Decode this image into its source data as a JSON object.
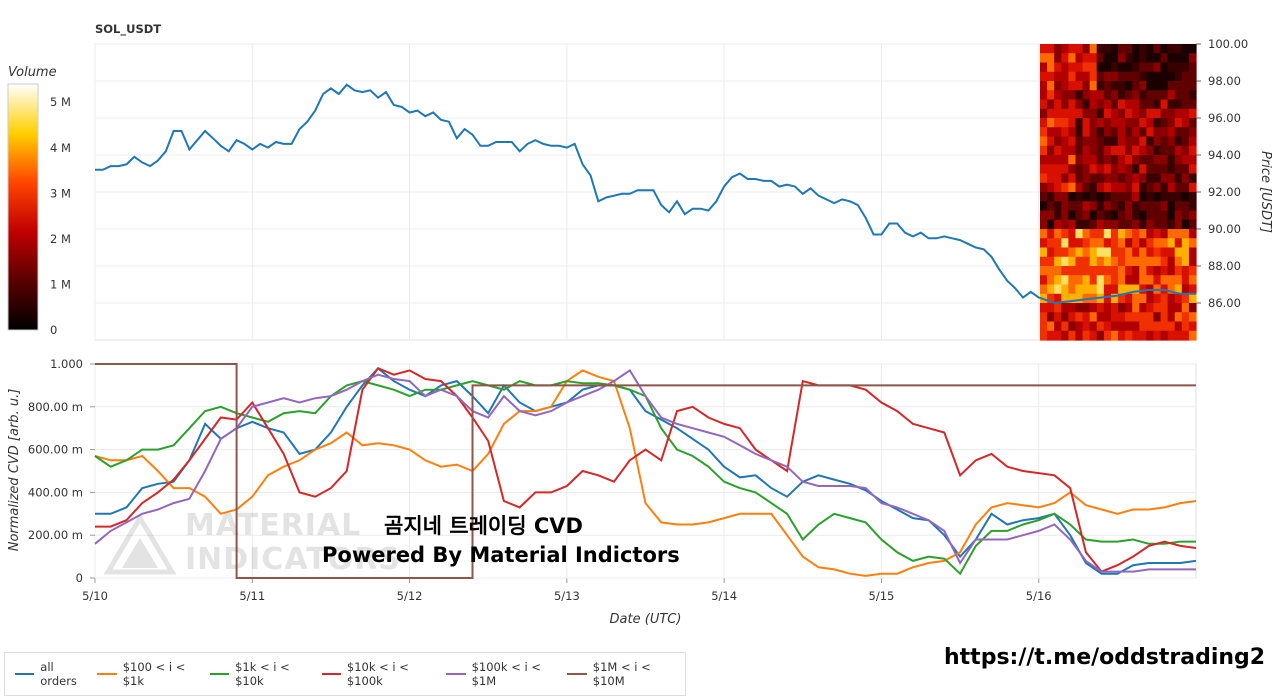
{
  "chart_data": [
    {
      "type": "line",
      "title": "SOL_USDT",
      "xlabel": "",
      "ylabel": "Price [USDT]",
      "ylim": [
        84,
        100
      ],
      "y_ticks": [
        "100.00",
        "98.00",
        "96.00",
        "94.00",
        "92.00",
        "90.00",
        "88.00",
        "86.00"
      ],
      "x_ticks": [
        "5/10",
        "5/11",
        "5/12",
        "5/13",
        "5/14",
        "5/15",
        "5/16"
      ],
      "grid": true,
      "series": [
        {
          "color": "#1f77b4",
          "x": [
            0,
            0.05,
            0.1,
            0.15,
            0.2,
            0.25,
            0.3,
            0.35,
            0.4,
            0.45,
            0.5,
            0.55,
            0.6,
            0.65,
            0.7,
            0.75,
            0.8,
            0.85,
            0.9,
            0.95,
            1.0,
            1.05,
            1.1,
            1.15,
            1.2,
            1.25,
            1.3,
            1.35,
            1.4,
            1.45,
            1.5,
            1.55,
            1.6,
            1.65,
            1.7,
            1.75,
            1.8,
            1.85,
            1.9,
            1.95,
            2.0,
            2.05,
            2.1,
            2.15,
            2.2,
            2.25,
            2.3,
            2.35,
            2.4,
            2.45,
            2.5,
            2.55,
            2.6,
            2.65,
            2.7,
            2.75,
            2.8,
            2.85,
            2.9,
            2.95,
            3.0,
            3.05,
            3.1,
            3.15,
            3.2,
            3.25,
            3.3,
            3.35,
            3.4,
            3.45,
            3.5,
            3.55,
            3.6,
            3.65,
            3.7,
            3.75,
            3.8,
            3.85,
            3.9,
            3.95,
            4.0,
            4.05,
            4.1,
            4.15,
            4.2,
            4.25,
            4.3,
            4.35,
            4.4,
            4.45,
            4.5,
            4.55,
            4.6,
            4.65,
            4.7,
            4.75,
            4.8,
            4.85,
            4.9,
            4.95,
            5.0,
            5.05,
            5.1,
            5.15,
            5.2,
            5.25,
            5.3,
            5.35,
            5.4,
            5.45,
            5.5,
            5.55,
            5.6,
            5.65,
            5.7,
            5.75,
            5.8,
            5.85,
            5.9,
            5.95,
            6.0,
            6.1,
            6.2,
            6.3,
            6.4,
            6.5,
            6.6,
            6.7,
            6.8,
            6.9,
            7.0
          ],
          "y": [
            93.2,
            93.2,
            93.4,
            93.4,
            93.5,
            93.9,
            93.6,
            93.4,
            93.7,
            94.2,
            95.3,
            95.3,
            94.3,
            94.8,
            95.3,
            94.9,
            94.5,
            94.2,
            94.8,
            94.6,
            94.3,
            94.6,
            94.4,
            94.7,
            94.6,
            94.6,
            95.4,
            95.8,
            96.4,
            97.3,
            97.6,
            97.3,
            97.8,
            97.5,
            97.4,
            97.5,
            97.1,
            97.4,
            96.7,
            96.6,
            96.3,
            96.4,
            96.1,
            96.3,
            95.9,
            95.8,
            94.9,
            95.4,
            95.1,
            94.5,
            94.5,
            94.7,
            94.7,
            94.7,
            94.2,
            94.6,
            94.8,
            94.6,
            94.5,
            94.5,
            94.4,
            94.6,
            93.5,
            92.9,
            91.5,
            91.7,
            91.8,
            91.9,
            91.9,
            92.1,
            92.1,
            92.1,
            91.3,
            90.9,
            91.5,
            90.8,
            91.1,
            91.1,
            91.0,
            91.5,
            92.3,
            92.8,
            93.0,
            92.7,
            92.7,
            92.6,
            92.6,
            92.3,
            92.4,
            92.3,
            91.9,
            92.2,
            91.8,
            91.6,
            91.4,
            91.6,
            91.5,
            91.3,
            90.6,
            89.7,
            89.7,
            90.3,
            90.3,
            89.8,
            89.6,
            89.8,
            89.5,
            89.5,
            89.6,
            89.5,
            89.4,
            89.2,
            89.0,
            88.9,
            88.5,
            87.8,
            87.2,
            86.8,
            86.3,
            86.6,
            86.3,
            86.0,
            86.1,
            86.2,
            86.3,
            86.4,
            86.6,
            86.7,
            86.7,
            86.5,
            86.5
          ]
        }
      ],
      "heatmap_colorbar": {
        "title": "Volume",
        "ticks": [
          "5 M",
          "4 M",
          "3 M",
          "2 M",
          "1 M",
          "0"
        ],
        "range": [
          0,
          5.4
        ]
      }
    },
    {
      "type": "line",
      "xlabel": "Date (UTC)",
      "ylabel": "Normalized CVD [arb. u.]",
      "ylim": [
        0,
        1
      ],
      "y_ticks": [
        "1.000",
        "800.00 m",
        "600.00 m",
        "400.00 m",
        "200.00 m",
        "0"
      ],
      "x_ticks": [
        "5/10",
        "5/11",
        "5/12",
        "5/13",
        "5/14",
        "5/15",
        "5/16"
      ],
      "grid": true,
      "x": [
        0,
        0.1,
        0.2,
        0.3,
        0.4,
        0.5,
        0.6,
        0.7,
        0.8,
        0.9,
        1.0,
        1.1,
        1.2,
        1.3,
        1.4,
        1.5,
        1.6,
        1.7,
        1.8,
        1.9,
        2.0,
        2.1,
        2.2,
        2.3,
        2.4,
        2.5,
        2.6,
        2.7,
        2.8,
        2.9,
        3.0,
        3.1,
        3.2,
        3.3,
        3.4,
        3.5,
        3.6,
        3.7,
        3.8,
        3.9,
        4.0,
        4.1,
        4.2,
        4.3,
        4.4,
        4.5,
        4.6,
        4.7,
        4.8,
        4.9,
        5.0,
        5.1,
        5.2,
        5.3,
        5.4,
        5.5,
        5.6,
        5.7,
        5.8,
        5.9,
        6.0,
        6.1,
        6.2,
        6.3,
        6.4,
        6.5,
        6.6,
        6.7,
        6.8,
        6.9,
        7.0
      ],
      "series": [
        {
          "name": "all orders",
          "color": "#1f77b4",
          "values": [
            0.3,
            0.3,
            0.33,
            0.42,
            0.44,
            0.45,
            0.55,
            0.72,
            0.65,
            0.7,
            0.73,
            0.7,
            0.68,
            0.58,
            0.6,
            0.68,
            0.8,
            0.9,
            0.98,
            0.92,
            0.88,
            0.85,
            0.9,
            0.92,
            0.85,
            0.77,
            0.9,
            0.82,
            0.78,
            0.8,
            0.82,
            0.88,
            0.9,
            0.9,
            0.88,
            0.78,
            0.74,
            0.7,
            0.65,
            0.6,
            0.52,
            0.47,
            0.48,
            0.42,
            0.38,
            0.45,
            0.48,
            0.46,
            0.44,
            0.41,
            0.36,
            0.32,
            0.28,
            0.27,
            0.2,
            0.1,
            0.18,
            0.3,
            0.25,
            0.27,
            0.28,
            0.3,
            0.2,
            0.07,
            0.02,
            0.02,
            0.06,
            0.07,
            0.07,
            0.07,
            0.08
          ]
        },
        {
          "name": "$100 < i < $1k",
          "color": "#ff7f0e",
          "values": [
            0.57,
            0.55,
            0.55,
            0.57,
            0.5,
            0.42,
            0.42,
            0.38,
            0.3,
            0.32,
            0.38,
            0.48,
            0.52,
            0.55,
            0.6,
            0.63,
            0.68,
            0.62,
            0.63,
            0.62,
            0.6,
            0.55,
            0.52,
            0.53,
            0.5,
            0.58,
            0.72,
            0.78,
            0.78,
            0.8,
            0.92,
            0.97,
            0.94,
            0.92,
            0.7,
            0.35,
            0.26,
            0.25,
            0.25,
            0.26,
            0.28,
            0.3,
            0.3,
            0.3,
            0.2,
            0.1,
            0.05,
            0.04,
            0.02,
            0.01,
            0.02,
            0.02,
            0.05,
            0.07,
            0.08,
            0.12,
            0.25,
            0.33,
            0.35,
            0.34,
            0.33,
            0.35,
            0.4,
            0.34,
            0.32,
            0.3,
            0.32,
            0.32,
            0.33,
            0.35,
            0.36
          ]
        },
        {
          "name": "$1k < i < $10k",
          "color": "#2ca02c",
          "values": [
            0.57,
            0.52,
            0.55,
            0.6,
            0.6,
            0.62,
            0.7,
            0.78,
            0.8,
            0.77,
            0.75,
            0.73,
            0.77,
            0.78,
            0.77,
            0.85,
            0.9,
            0.92,
            0.9,
            0.88,
            0.85,
            0.88,
            0.88,
            0.9,
            0.92,
            0.9,
            0.88,
            0.92,
            0.9,
            0.9,
            0.92,
            0.91,
            0.91,
            0.9,
            0.88,
            0.85,
            0.7,
            0.6,
            0.57,
            0.52,
            0.45,
            0.42,
            0.4,
            0.35,
            0.3,
            0.18,
            0.25,
            0.3,
            0.28,
            0.26,
            0.18,
            0.12,
            0.08,
            0.1,
            0.09,
            0.02,
            0.15,
            0.22,
            0.22,
            0.25,
            0.27,
            0.3,
            0.25,
            0.18,
            0.17,
            0.17,
            0.18,
            0.16,
            0.16,
            0.17,
            0.17
          ]
        },
        {
          "name": "$10k < i < $100k",
          "color": "#d62728",
          "values": [
            0.24,
            0.24,
            0.27,
            0.35,
            0.4,
            0.46,
            0.55,
            0.65,
            0.75,
            0.74,
            0.82,
            0.7,
            0.58,
            0.4,
            0.38,
            0.42,
            0.5,
            0.88,
            0.98,
            0.95,
            0.97,
            0.93,
            0.92,
            0.85,
            0.75,
            0.64,
            0.36,
            0.33,
            0.4,
            0.4,
            0.43,
            0.5,
            0.48,
            0.45,
            0.55,
            0.6,
            0.55,
            0.78,
            0.8,
            0.75,
            0.72,
            0.7,
            0.6,
            0.55,
            0.5,
            0.92,
            0.9,
            0.9,
            0.9,
            0.88,
            0.82,
            0.78,
            0.72,
            0.7,
            0.68,
            0.48,
            0.55,
            0.58,
            0.52,
            0.5,
            0.49,
            0.48,
            0.42,
            0.12,
            0.03,
            0.06,
            0.1,
            0.15,
            0.17,
            0.15,
            0.14
          ]
        },
        {
          "name": "$100k < i < $1M",
          "color": "#9467bd",
          "values": [
            0.16,
            0.22,
            0.26,
            0.3,
            0.32,
            0.35,
            0.37,
            0.5,
            0.65,
            0.7,
            0.8,
            0.82,
            0.84,
            0.82,
            0.84,
            0.85,
            0.88,
            0.92,
            0.95,
            0.93,
            0.92,
            0.85,
            0.88,
            0.85,
            0.78,
            0.75,
            0.85,
            0.78,
            0.76,
            0.78,
            0.82,
            0.85,
            0.88,
            0.92,
            0.97,
            0.85,
            0.75,
            0.72,
            0.7,
            0.68,
            0.66,
            0.62,
            0.58,
            0.55,
            0.52,
            0.45,
            0.43,
            0.43,
            0.43,
            0.42,
            0.35,
            0.33,
            0.3,
            0.27,
            0.22,
            0.07,
            0.18,
            0.18,
            0.18,
            0.2,
            0.22,
            0.25,
            0.18,
            0.08,
            0.03,
            0.03,
            0.03,
            0.04,
            0.04,
            0.04,
            0.04
          ]
        },
        {
          "name": "$1M < i < $10M",
          "color": "#8c564b",
          "values": [
            1.0,
            1.0,
            1.0,
            1.0,
            1.0,
            1.0,
            1.0,
            1.0,
            1.0,
            0.0,
            0.0,
            0.0,
            0.0,
            0.0,
            0.0,
            0.0,
            0.0,
            0.0,
            0.0,
            0.0,
            0.0,
            0.0,
            0.0,
            0.0,
            0.9,
            0.9,
            0.9,
            0.9,
            0.9,
            0.9,
            0.9,
            0.9,
            0.9,
            0.9,
            0.9,
            0.9,
            0.9,
            0.9,
            0.9,
            0.9,
            0.9,
            0.9,
            0.9,
            0.9,
            0.9,
            0.9,
            0.9,
            0.9,
            0.9,
            0.9,
            0.9,
            0.9,
            0.9,
            0.9,
            0.9,
            0.9,
            0.9,
            0.9,
            0.9,
            0.9,
            0.9,
            0.9,
            0.9,
            0.9,
            0.9,
            0.9,
            0.9,
            0.9,
            0.9,
            0.9,
            0.9
          ]
        }
      ],
      "legend_position": "bottom-left"
    }
  ],
  "overlay": {
    "korean_title": "곰지네 트레이딩 CVD",
    "powered_by": "Powered By Material Indictors",
    "watermark_line1": "MATERIAL",
    "watermark_line2": "INDICATORS",
    "telegram_link": "https://t.me/oddstrading2"
  }
}
